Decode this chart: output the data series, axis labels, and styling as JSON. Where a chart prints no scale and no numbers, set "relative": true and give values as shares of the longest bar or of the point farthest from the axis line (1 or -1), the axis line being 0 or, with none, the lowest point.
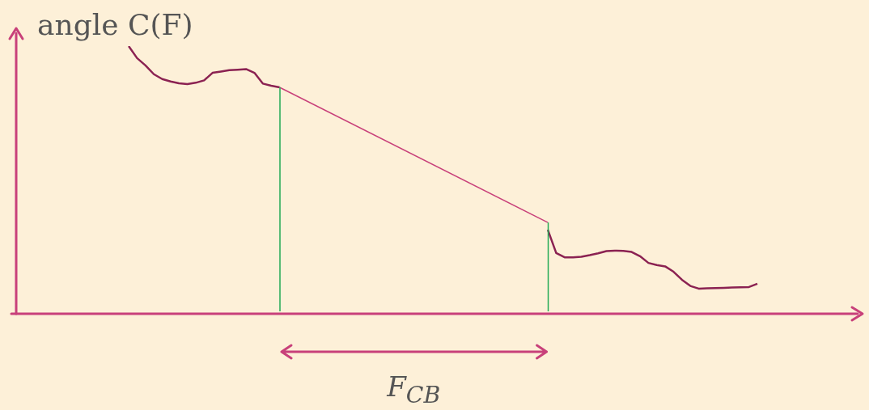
{
  "chart_data": {
    "type": "line",
    "ylabel": "angle C(F)",
    "relative": true,
    "legend": false,
    "marker": "none",
    "line_style": "solid",
    "annotations": [
      "F$_{CB}$"
    ],
    "categories": [
      null,
      null,
      null,
      null,
      null,
      null,
      null,
      null,
      null,
      null,
      null,
      null,
      null,
      null,
      null,
      null,
      null,
      null,
      null,
      null,
      null,
      null,
      null,
      null,
      null,
      null,
      null,
      null,
      null,
      null,
      null,
      null,
      null,
      null,
      null,
      null,
      null,
      null,
      null,
      null,
      null,
      null,
      null,
      null,
      null,
      null,
      null,
      null,
      null,
      null,
      null,
      null,
      null,
      null,
      null,
      null,
      null,
      null,
      null,
      null,
      null,
      null,
      null,
      null,
      null,
      null,
      null,
      null,
      null,
      null,
      null,
      null,
      null,
      null,
      null,
      null,
      null,
      null,
      null,
      null,
      null,
      null,
      null,
      null,
      null,
      null,
      null,
      null,
      null,
      null,
      null,
      null,
      null,
      null,
      null,
      null,
      null,
      null,
      null,
      null,
      null
    ],
    "series": [
      {
        "color": "#8b2252",
        "values": [
          null,
          null,
          null,
          null,
          null,
          null,
          null,
          null,
          null,
          null,
          null,
          null,
          null,
          null,
          1.0,
          0.955,
          0.928,
          0.895,
          0.877,
          0.868,
          0.861,
          0.858,
          0.863,
          0.872,
          0.9,
          0.905,
          0.91,
          0.912,
          0.914,
          0.9,
          0.86,
          0.852,
          0.846,
          null,
          null,
          null,
          null,
          null,
          null,
          null,
          null,
          null,
          null,
          null,
          null,
          null,
          null,
          null,
          null,
          null,
          null,
          null,
          null,
          null,
          null,
          null,
          null,
          null,
          null,
          null,
          null,
          null,
          null,
          null,
          null,
          null,
          null,
          null,
          null,
          null,
          null,
          null,
          null,
          null,
          null,
          null,
          null,
          null,
          null,
          null,
          null,
          null,
          null,
          null,
          null,
          null,
          null,
          null,
          null,
          null,
          null,
          null,
          null,
          null,
          null,
          null,
          null,
          null,
          null,
          null,
          null
        ]
      },
      {
        "color": "#c8407a",
        "values": [
          null,
          null,
          null,
          null,
          null,
          null,
          null,
          null,
          null,
          null,
          null,
          null,
          null,
          null,
          null,
          null,
          null,
          null,
          null,
          null,
          null,
          null,
          null,
          null,
          null,
          null,
          null,
          null,
          null,
          null,
          null,
          null,
          0.846,
          null,
          null,
          null,
          null,
          null,
          null,
          null,
          null,
          null,
          null,
          null,
          null,
          null,
          null,
          null,
          null,
          null,
          null,
          null,
          null,
          null,
          null,
          null,
          null,
          null,
          null,
          null,
          null,
          null,
          null,
          null,
          0.341,
          null,
          null,
          null,
          null,
          null,
          null,
          null,
          null,
          null,
          null,
          null,
          null,
          null,
          null,
          null,
          null,
          null,
          null,
          null,
          null,
          null,
          null,
          null,
          null,
          null,
          null,
          null,
          null,
          null,
          null,
          null,
          null,
          null,
          null,
          null,
          null
        ]
      },
      {
        "color": "#8b2252",
        "values": [
          null,
          null,
          null,
          null,
          null,
          null,
          null,
          null,
          null,
          null,
          null,
          null,
          null,
          null,
          null,
          null,
          null,
          null,
          null,
          null,
          null,
          null,
          null,
          null,
          null,
          null,
          null,
          null,
          null,
          null,
          null,
          null,
          null,
          null,
          null,
          null,
          null,
          null,
          null,
          null,
          null,
          null,
          null,
          null,
          null,
          null,
          null,
          null,
          null,
          null,
          null,
          null,
          null,
          null,
          null,
          null,
          null,
          null,
          null,
          null,
          null,
          null,
          null,
          null,
          0.314,
          0.227,
          0.211,
          0.211,
          0.213,
          0.219,
          0.226,
          0.234,
          0.236,
          0.235,
          0.231,
          0.215,
          0.19,
          0.182,
          0.177,
          0.157,
          0.127,
          0.104,
          0.094,
          0.095,
          0.096,
          0.097,
          0.098,
          0.099,
          0.1,
          0.112,
          null,
          null,
          null,
          null,
          null,
          null,
          null,
          null,
          null,
          null,
          null
        ]
      }
    ]
  }
}
